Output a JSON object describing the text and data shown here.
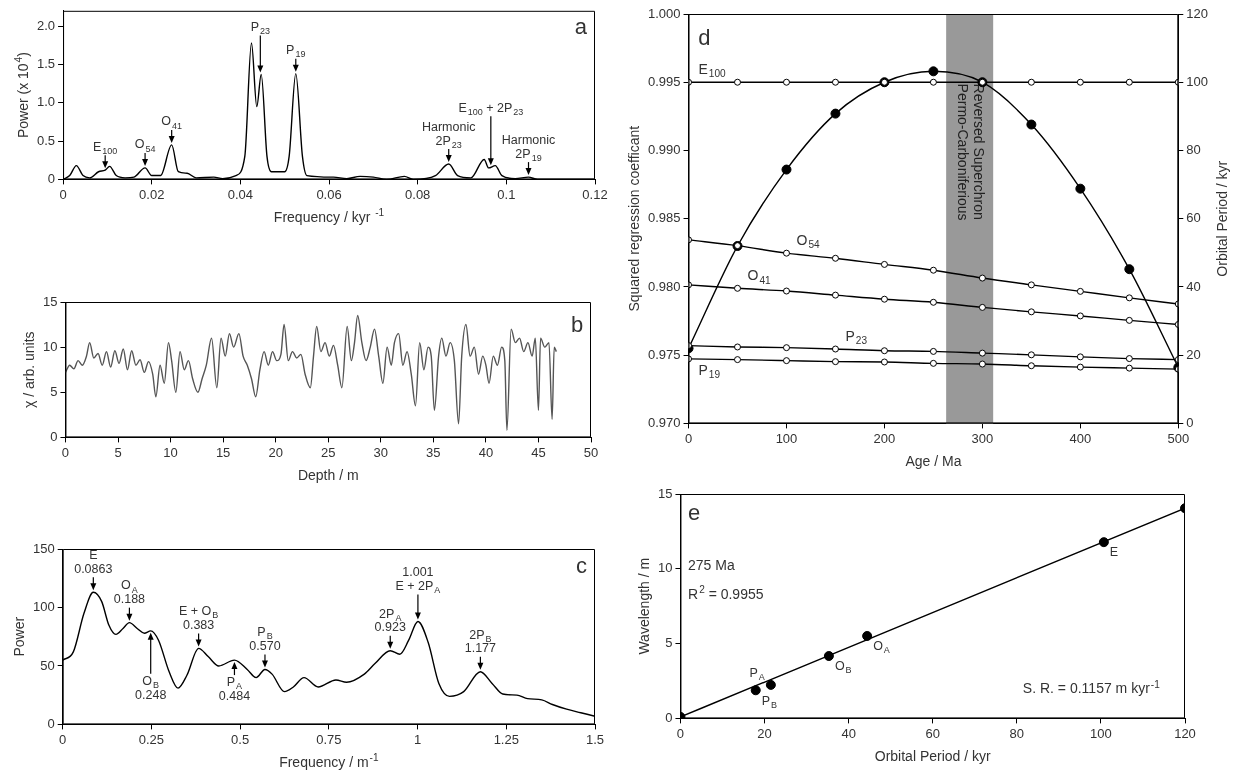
{
  "chart_data": [
    {
      "type": "line",
      "xlabel": "Frequency / kyr $^{-1}$",
      "ylabel": "Power (x 10$^{4}$)",
      "xlim": [
        0,
        0.12
      ],
      "xticks": [
        0,
        0.02,
        0.04,
        0.06,
        0.08,
        0.1,
        0.12
      ],
      "ylim": [
        0,
        2.2
      ],
      "yticks": [
        0,
        0.5,
        {
          "value": 1,
          "label": "1.0"
        },
        1.5,
        {
          "value": 2,
          "label": "2.0"
        }
      ],
      "color": "#000000",
      "x": [
        0,
        0.0015,
        0.003,
        0.0045,
        0.006,
        0.008,
        0.0095,
        0.0105,
        0.012,
        0.014,
        0.016,
        0.0185,
        0.02,
        0.022,
        0.0245,
        0.026,
        0.028,
        0.03,
        0.034,
        0.036,
        0.039,
        0.041,
        0.0425,
        0.0437,
        0.0447,
        0.046,
        0.047,
        0.05,
        0.051,
        0.0525,
        0.054,
        0.055,
        0.061,
        0.064,
        0.067,
        0.07,
        0.073,
        0.077,
        0.079,
        0.084,
        0.087,
        0.089,
        0.092,
        0.095,
        0.096,
        0.0975,
        0.099,
        0.102,
        0.105,
        0.107,
        0.12
      ],
      "values": [
        0,
        0.05,
        0.18,
        0.05,
        0.02,
        0.1,
        0.12,
        0.17,
        0.05,
        0.02,
        0.03,
        0.15,
        0.05,
        0.05,
        0.45,
        0.1,
        0.08,
        0.02,
        0.03,
        0.01,
        0.05,
        0.3,
        1.78,
        0.95,
        1.37,
        0.3,
        0.1,
        0.1,
        0.3,
        1.38,
        0.3,
        0.05,
        0.03,
        0.01,
        0.04,
        0.03,
        0,
        0.04,
        0,
        0.05,
        0.2,
        0.05,
        0.02,
        0.26,
        0.15,
        0.18,
        0.05,
        0.01,
        0.03,
        0,
        0
      ],
      "annotations": [
        "a",
        {
          "text": "E$_{100}$",
          "x": 0.0095,
          "y": 0.12
        },
        {
          "text": "O$_{54}$",
          "x": 0.0185,
          "y": 0.15
        },
        {
          "text": "O$_{41}$",
          "x": 0.0245,
          "y": 0.45
        },
        {
          "text": "P$_{23}$",
          "x": 0.0445,
          "y": 1.37
        },
        {
          "text": "P$_{19}$",
          "x": 0.0525,
          "y": 1.38
        },
        {
          "text": "Harmonic\n2P$_{23}$",
          "x": 0.087,
          "y": 0.2
        },
        {
          "text": "E$_{100}$ + 2P$_{23}$",
          "x": 0.0965,
          "y": 0.16
        },
        {
          "text": "Harmonic\n2P$_{19}$",
          "x": 0.105,
          "y": 0.03
        }
      ]
    },
    {
      "type": "line",
      "xlabel": "Depth / m",
      "ylabel": "χ / arb. units",
      "xlim": [
        0,
        50
      ],
      "xticks": [
        0,
        5,
        10,
        15,
        20,
        25,
        30,
        35,
        40,
        45,
        50
      ],
      "ylim": [
        0,
        15
      ],
      "yticks": [
        0,
        5,
        10,
        15
      ],
      "color": "#555555",
      "x": [
        0,
        0.4,
        0.8,
        1.2,
        1.6,
        2.0,
        2.3,
        2.7,
        3.1,
        3.5,
        3.9,
        4.3,
        4.7,
        5.1,
        5.5,
        5.9,
        6.3,
        6.7,
        7.1,
        7.5,
        7.9,
        8.3,
        8.6,
        9.0,
        9.4,
        9.8,
        10.1,
        10.5,
        10.9,
        11.3,
        11.7,
        12.1,
        12.6,
        13.0,
        13.4,
        13.9,
        14.4,
        14.8,
        15.2,
        15.6,
        16.0,
        16.5,
        16.9,
        17.3,
        17.7,
        18.1,
        18.5,
        18.9,
        19.3,
        19.7,
        20.1,
        20.5,
        20.8,
        21.2,
        21.6,
        22.0,
        22.4,
        22.8,
        23.3,
        23.6,
        23.9,
        24.3,
        24.7,
        25.1,
        25.5,
        25.9,
        26.3,
        26.8,
        27.2,
        27.5,
        27.8,
        28.2,
        28.6,
        29.0,
        29.4,
        29.8,
        30.2,
        30.6,
        31.0,
        31.3,
        31.7,
        32.1,
        32.5,
        32.9,
        33.3,
        33.7,
        34.1,
        34.5,
        34.8,
        35.1,
        35.5,
        35.8,
        36.2,
        36.6,
        37.0,
        37.4,
        37.7,
        38.1,
        38.5,
        38.9,
        39.3,
        39.7,
        40.0,
        40.3,
        40.7,
        41.1,
        41.5,
        41.8,
        42.0,
        42.4,
        42.8,
        43.2,
        43.6,
        44.0,
        44.4,
        44.7,
        45.0,
        45.2,
        45.6,
        46.0,
        46.3,
        46.5,
        46.7
      ],
      "values": [
        7.2,
        8.0,
        7.6,
        8.5,
        8.0,
        9.0,
        10.5,
        8.8,
        9.3,
        8.0,
        9.5,
        7.8,
        9.6,
        8.2,
        9.8,
        7.5,
        9.6,
        8.0,
        8.6,
        7.2,
        8.4,
        7.0,
        4.5,
        8.0,
        6.0,
        10.5,
        8.5,
        5.0,
        9.5,
        7.5,
        8.5,
        6.5,
        5.0,
        6.5,
        8.0,
        11.0,
        5.5,
        11.0,
        9.0,
        11.5,
        10.0,
        11.5,
        9.0,
        8.0,
        6.5,
        4.5,
        7.5,
        9.5,
        8.0,
        9.5,
        8.5,
        9.2,
        12.5,
        8.5,
        9.5,
        8.8,
        9.2,
        7.0,
        5.5,
        9.0,
        12.3,
        9.5,
        10.5,
        9.0,
        10.2,
        8.0,
        5.5,
        12.3,
        8.5,
        10.5,
        13.5,
        10.5,
        8.5,
        10.0,
        12.0,
        9.0,
        6.0,
        10.0,
        8.0,
        10.5,
        11.5,
        8.0,
        9.5,
        7.0,
        3.5,
        10.5,
        7.5,
        10.0,
        9.0,
        3.0,
        9.0,
        11.0,
        9.0,
        10.5,
        8.5,
        1.5,
        9.0,
        12.5,
        9.0,
        10.0,
        7.0,
        9.0,
        8.0,
        6.0,
        9.0,
        8.0,
        10.0,
        8.5,
        0.8,
        12.0,
        10.5,
        11.0,
        9.5,
        10.5,
        9.0,
        11.0,
        3.0,
        11.0,
        10.0,
        10.5,
        2.0,
        10.0,
        9.5
      ],
      "annotations": [
        "b"
      ]
    },
    {
      "type": "line",
      "xlabel": "Frequency / m$^{-1}$",
      "ylabel": "Power",
      "xlim": [
        0,
        1.5
      ],
      "xticks": [
        0,
        0.25,
        0.5,
        0.75,
        1,
        1.25,
        1.5
      ],
      "ylim": [
        0,
        150
      ],
      "yticks": [
        0,
        50,
        100,
        150
      ],
      "color": "#000000",
      "x": [
        0,
        0.03,
        0.06,
        0.0863,
        0.11,
        0.13,
        0.15,
        0.17,
        0.188,
        0.21,
        0.23,
        0.248,
        0.27,
        0.3,
        0.325,
        0.35,
        0.383,
        0.41,
        0.44,
        0.484,
        0.52,
        0.545,
        0.57,
        0.59,
        0.625,
        0.65,
        0.68,
        0.72,
        0.77,
        0.8,
        0.85,
        0.88,
        0.923,
        0.95,
        0.975,
        1.001,
        1.03,
        1.06,
        1.09,
        1.13,
        1.177,
        1.21,
        1.24,
        1.28,
        1.31,
        1.35,
        1.38,
        1.42,
        1.46,
        1.5
      ],
      "values": [
        55,
        62,
        95,
        113,
        105,
        85,
        77,
        82,
        87,
        82,
        78,
        80,
        72,
        45,
        31,
        42,
        65,
        58,
        50,
        55,
        47,
        40,
        47,
        43,
        28,
        32,
        40,
        32,
        38,
        36,
        43,
        52,
        63,
        60,
        72,
        88,
        70,
        35,
        24,
        28,
        45,
        35,
        26,
        25,
        22,
        21,
        17,
        13,
        10,
        7
      ],
      "annotations": [
        "c",
        {
          "text": "E\n0.0863",
          "x": 0.0863,
          "y": 113
        },
        {
          "text": "O$_{A}$\n0.188",
          "x": 0.188,
          "y": 87
        },
        {
          "text": "O$_{B}$\n0.248",
          "x": 0.248,
          "y": 80
        },
        {
          "text": "E + O$_{B}$\n0.383",
          "x": 0.383,
          "y": 65
        },
        {
          "text": "P$_{A}$\n0.484",
          "x": 0.484,
          "y": 55
        },
        {
          "text": "P$_{B}$\n0.570",
          "x": 0.57,
          "y": 47
        },
        {
          "text": "2P$_{A}$\n0.923",
          "x": 0.923,
          "y": 63
        },
        {
          "text": "1.001\nE + 2P$_{A}$",
          "x": 1.001,
          "y": 88
        },
        {
          "text": "2P$_{B}$\n1.177",
          "x": 1.177,
          "y": 45
        }
      ]
    },
    {
      "type": "line",
      "xlabel": "Age / Ma",
      "ylabel": "Squared regression coefficant",
      "y2label": "Orbital Period / kyr",
      "marker": "circle",
      "xlim": [
        0,
        500
      ],
      "xticks": [
        0,
        100,
        200,
        300,
        400,
        500
      ],
      "ylim": [
        0.97,
        1
      ],
      "yticks": [
        {
          "value": 0.97,
          "label": "0.970"
        },
        0.975,
        {
          "value": 0.98,
          "label": "0.980"
        },
        0.985,
        {
          "value": 0.99,
          "label": "0.990"
        },
        0.995,
        {
          "value": 1,
          "label": "1.000"
        }
      ],
      "y2lim": [
        0,
        120
      ],
      "y2ticks": [
        0,
        20,
        40,
        60,
        80,
        100,
        120
      ],
      "x": [
        0,
        50,
        100,
        150,
        200,
        250,
        300,
        350,
        400,
        450,
        500
      ],
      "series": [
        {
          "color": "#000000",
          "values": [
            0.9755,
            0.983,
            0.9886,
            0.9927,
            0.995,
            0.9958,
            0.995,
            0.9919,
            0.9872,
            0.9813,
            0.9741
          ]
        },
        {
          "name": "E$_{100}$",
          "axis": "y2",
          "color": "#000000",
          "values": [
            100,
            100,
            100,
            100,
            100,
            100,
            100,
            100,
            100,
            100,
            100
          ]
        },
        {
          "name": "O$_{54}$",
          "axis": "y2",
          "color": "#000000",
          "values": [
            53.8,
            52.1,
            49.9,
            48.4,
            46.6,
            44.9,
            42.6,
            40.6,
            38.7,
            36.8,
            35.0
          ]
        },
        {
          "name": "O$_{41}$",
          "axis": "y2",
          "color": "#000000",
          "values": [
            40.6,
            39.6,
            38.8,
            37.6,
            36.4,
            35.5,
            34.0,
            32.7,
            31.5,
            30.2,
            29.0
          ]
        },
        {
          "name": "P$_{23}$",
          "axis": "y2",
          "color": "#000000",
          "values": [
            22.8,
            22.4,
            22.2,
            21.8,
            21.3,
            21.1,
            20.6,
            20.1,
            19.5,
            19.0,
            18.7
          ]
        },
        {
          "name": "P$_{19}$",
          "axis": "y2",
          "color": "#000000",
          "values": [
            18.9,
            18.7,
            18.4,
            18.1,
            18.0,
            17.6,
            17.4,
            16.9,
            16.5,
            16.2,
            15.9
          ]
        }
      ],
      "bands": [
        {
          "axis": "x",
          "from": 263,
          "to": 311,
          "label": "Permo-Carboniferious\nReversed Superchron",
          "color": "#999999"
        }
      ],
      "annotations": [
        "d"
      ]
    },
    {
      "type": "scatter",
      "xlabel": "Orbital Period / kyr",
      "ylabel": "Wavelength / m",
      "marker": "circle",
      "xlim": [
        0,
        120
      ],
      "xticks": [
        0,
        20,
        40,
        60,
        80,
        100,
        120
      ],
      "ylim": [
        0,
        15
      ],
      "yticks": [
        0,
        5,
        10,
        15
      ],
      "series": [
        {
          "color": "#000000",
          "x": [
            17.9,
            21.5,
            35.3,
            44.4,
            100.7
          ],
          "values": [
            1.88,
            2.24,
            4.17,
            5.51,
            11.78
          ]
        },
        {
          "type": "line",
          "color": "#000000",
          "x": [
            0,
            120
          ],
          "values": [
            0.1,
            14.05
          ]
        }
      ],
      "annotations": [
        "e",
        "275 Ma",
        "R$^{2}$ = 0.9955",
        "S. R. = 0.1157 m kyr$^{-1}$",
        {
          "text": "P$_{B}$",
          "x": 17.9,
          "y": 1.88
        },
        {
          "text": "P$_{A}$",
          "x": 21.5,
          "y": 2.24
        },
        {
          "text": "O$_{B}$",
          "x": 35.3,
          "y": 4.17
        },
        {
          "text": "O$_{A}$",
          "x": 44.4,
          "y": 5.51
        },
        {
          "text": "E",
          "x": 100.7,
          "y": 11.78
        }
      ]
    }
  ]
}
